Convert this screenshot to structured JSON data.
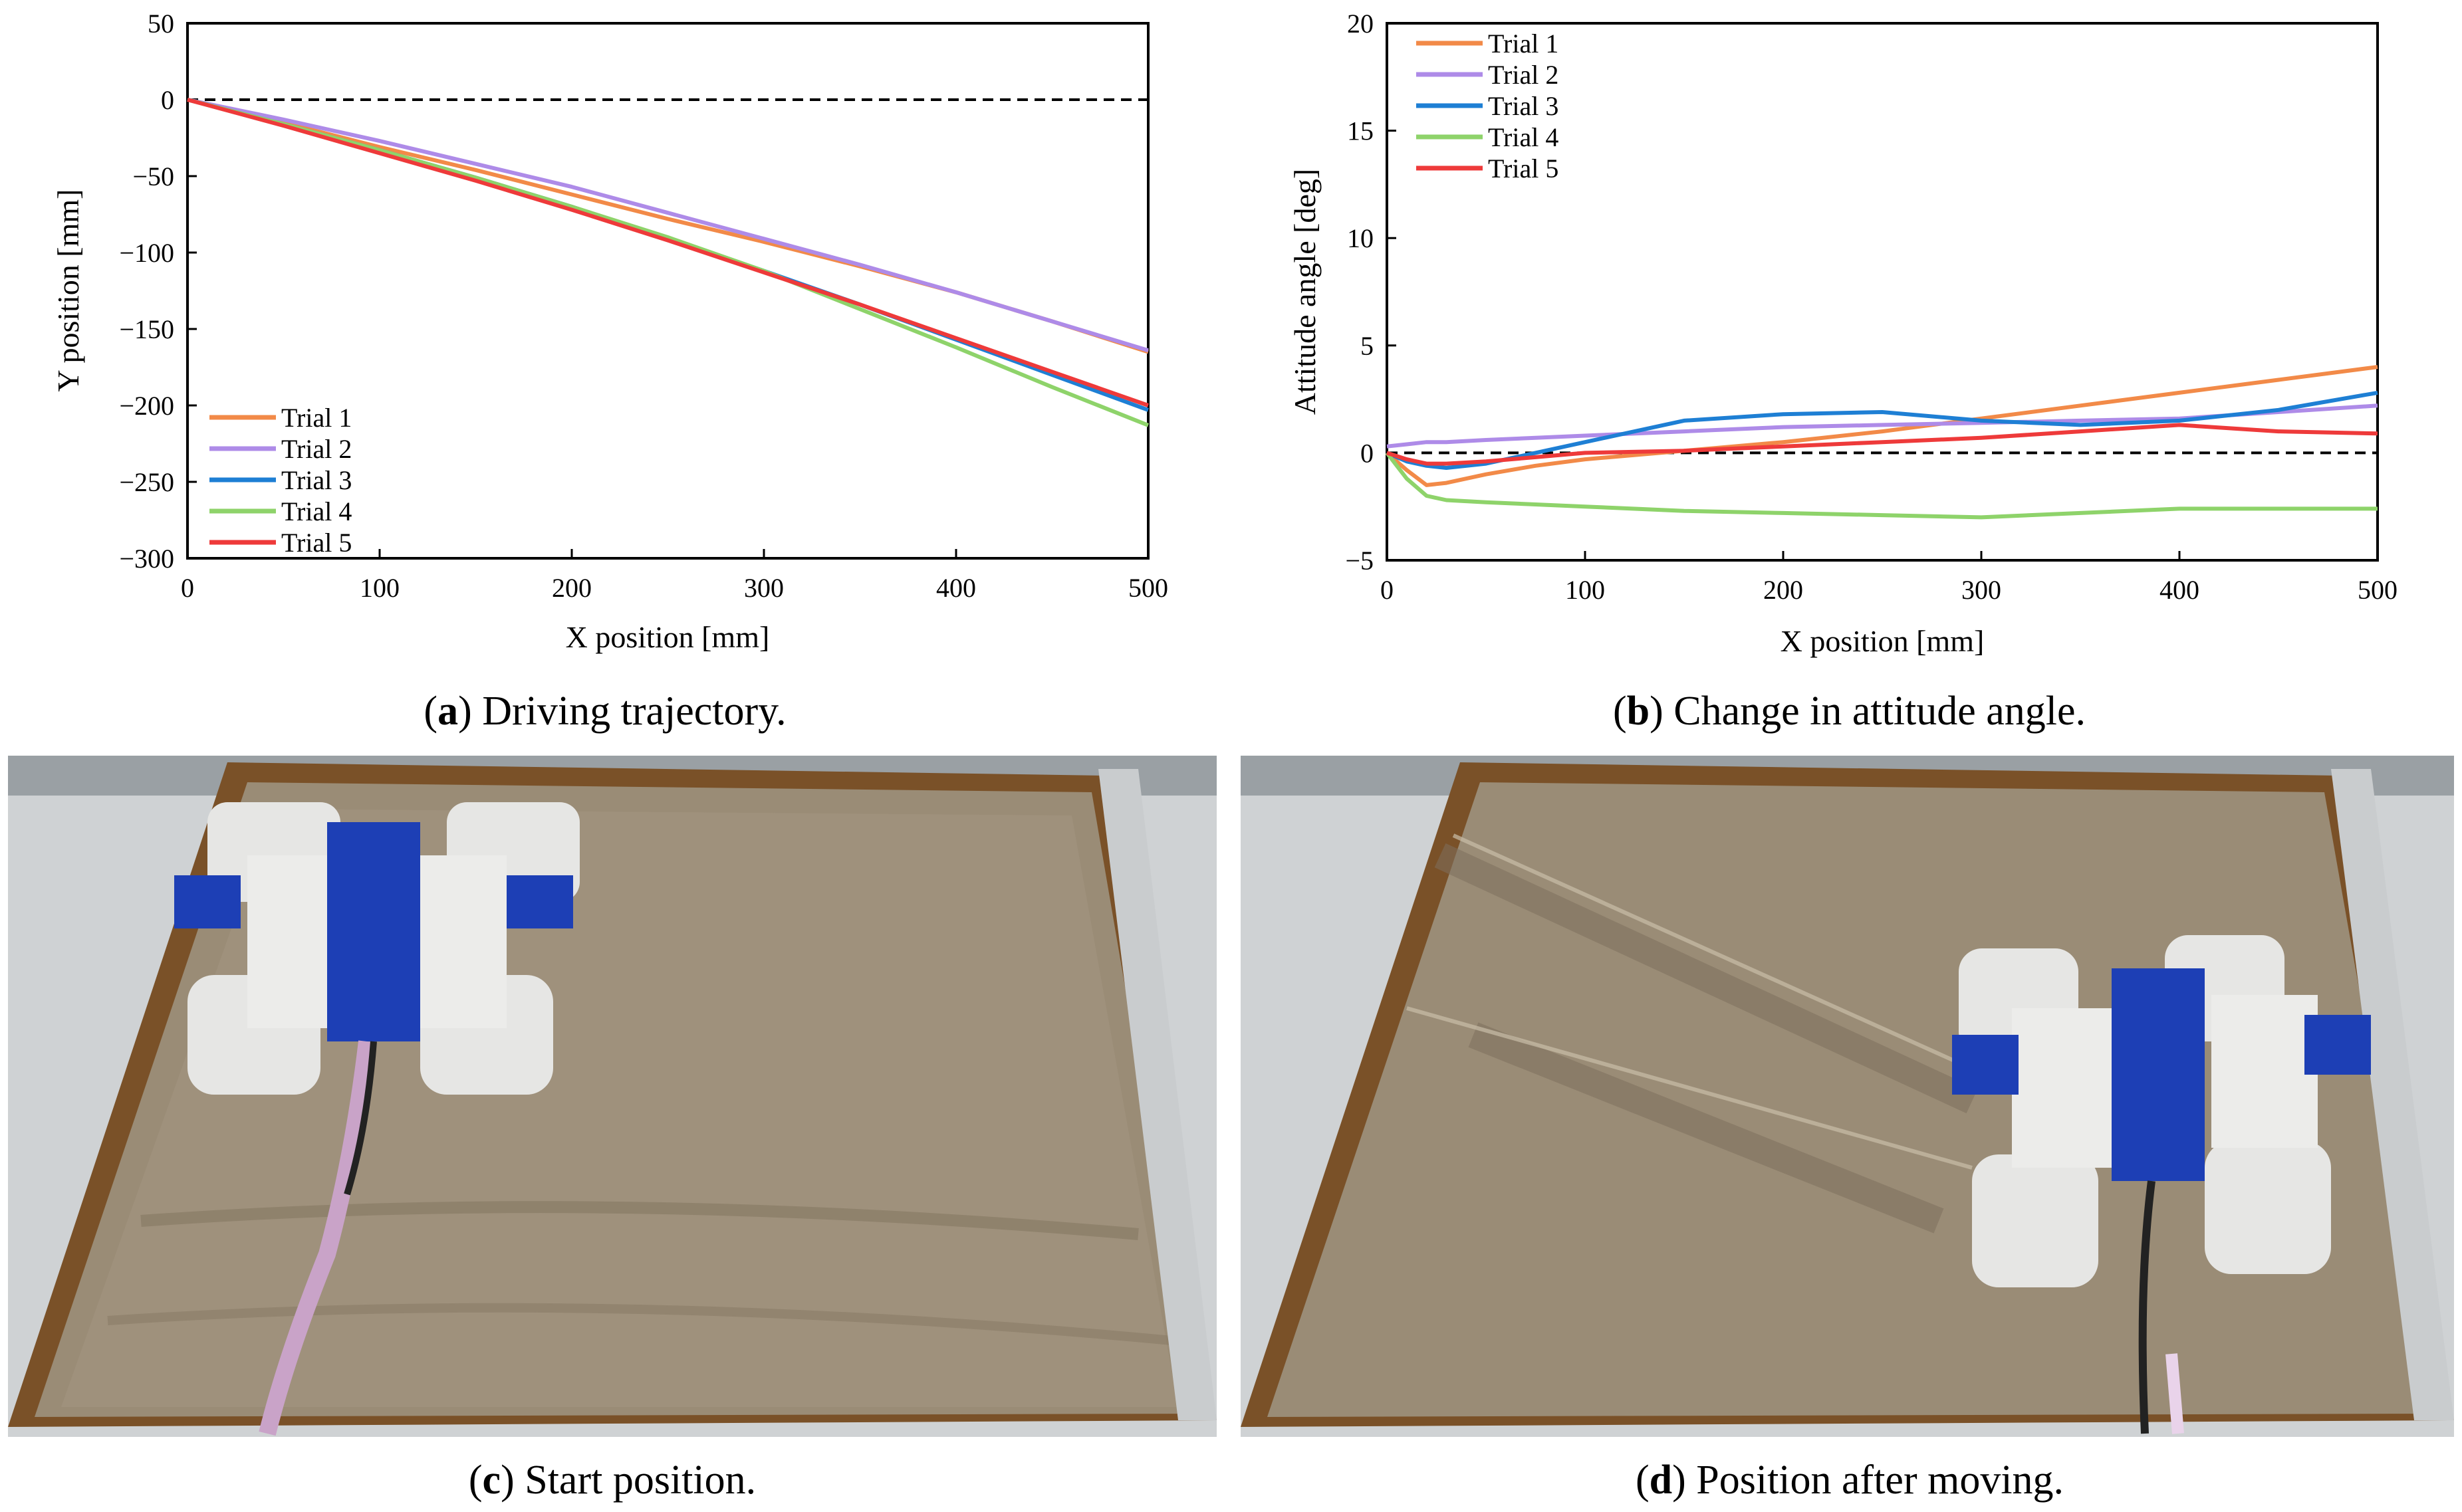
{
  "panels": {
    "a": {
      "letter": "a",
      "caption": "Driving trajectory."
    },
    "b": {
      "letter": "b",
      "caption": "Change in attitude angle."
    },
    "c": {
      "letter": "c",
      "caption": "Start position."
    },
    "d": {
      "letter": "d",
      "caption": "Position after moving."
    }
  },
  "colors": {
    "trial1": "#F28A48",
    "trial2": "#AE8BE8",
    "trial3": "#1E7FD4",
    "trial4": "#8ED36A",
    "trial5": "#EE3A3A",
    "sand": "#9a8c76",
    "frame_wood": "#8a5a2c"
  },
  "chart_data": [
    {
      "id": "a",
      "type": "line",
      "title": "",
      "xlabel": "X position [mm]",
      "ylabel": "Y position [mm]",
      "xlim": [
        0,
        500
      ],
      "ylim": [
        -300,
        50
      ],
      "xticks": [
        0,
        100,
        200,
        300,
        400,
        500
      ],
      "yticks": [
        -300,
        -250,
        -200,
        -150,
        -100,
        -50,
        0,
        50
      ],
      "ytick_labels": [
        "−300",
        "−250",
        "−200",
        "−150",
        "−100",
        "−50",
        "0",
        "50"
      ],
      "reference_line": {
        "y": 0,
        "style": "dashed"
      },
      "legend_position": "bottom-left",
      "series": [
        {
          "name": "Trial 1",
          "color_key": "trial1",
          "x": [
            0,
            50,
            100,
            150,
            200,
            250,
            300,
            350,
            400,
            450,
            500
          ],
          "y": [
            0,
            -15,
            -31,
            -46,
            -62,
            -78,
            -93,
            -109,
            -126,
            -145,
            -165
          ]
        },
        {
          "name": "Trial 2",
          "color_key": "trial2",
          "x": [
            0,
            50,
            100,
            150,
            200,
            250,
            300,
            350,
            400,
            450,
            500
          ],
          "y": [
            0,
            -13,
            -27,
            -42,
            -57,
            -74,
            -91,
            -108,
            -126,
            -145,
            -164
          ]
        },
        {
          "name": "Trial 3",
          "color_key": "trial3",
          "x": [
            0,
            50,
            100,
            150,
            200,
            250,
            300,
            350,
            400,
            450,
            500
          ],
          "y": [
            0,
            -16,
            -33,
            -51,
            -70,
            -91,
            -112,
            -134,
            -157,
            -180,
            -203
          ]
        },
        {
          "name": "Trial 4",
          "color_key": "trial4",
          "x": [
            0,
            50,
            100,
            150,
            200,
            250,
            300,
            350,
            400,
            450,
            500
          ],
          "y": [
            0,
            -16,
            -33,
            -51,
            -70,
            -90,
            -112,
            -137,
            -162,
            -188,
            -213
          ]
        },
        {
          "name": "Trial 5",
          "color_key": "trial5",
          "x": [
            0,
            50,
            100,
            150,
            200,
            250,
            300,
            350,
            400,
            450,
            500
          ],
          "y": [
            0,
            -17,
            -35,
            -53,
            -72,
            -92,
            -113,
            -134,
            -156,
            -178,
            -200
          ]
        }
      ]
    },
    {
      "id": "b",
      "type": "line",
      "title": "",
      "xlabel": "X position [mm]",
      "ylabel": "Attitude angle [deg]",
      "xlim": [
        0,
        500
      ],
      "ylim": [
        -5,
        20
      ],
      "xticks": [
        0,
        100,
        200,
        300,
        400,
        500
      ],
      "yticks": [
        -5,
        0,
        5,
        10,
        15,
        20
      ],
      "ytick_labels": [
        "−5",
        "0",
        "5",
        "10",
        "15",
        "20"
      ],
      "reference_line": {
        "y": 0,
        "style": "dashed"
      },
      "legend_position": "top-left",
      "series": [
        {
          "name": "Trial 1",
          "color_key": "trial1",
          "x": [
            0,
            10,
            20,
            30,
            50,
            75,
            100,
            150,
            200,
            250,
            300,
            350,
            400,
            450,
            500
          ],
          "y": [
            0,
            -0.8,
            -1.5,
            -1.4,
            -1.0,
            -0.6,
            -0.3,
            0.1,
            0.5,
            1.0,
            1.6,
            2.2,
            2.8,
            3.4,
            4.0
          ]
        },
        {
          "name": "Trial 2",
          "color_key": "trial2",
          "x": [
            0,
            10,
            20,
            30,
            50,
            75,
            100,
            150,
            200,
            250,
            300,
            350,
            400,
            450,
            500
          ],
          "y": [
            0.3,
            0.4,
            0.5,
            0.5,
            0.6,
            0.7,
            0.8,
            1.0,
            1.2,
            1.3,
            1.4,
            1.5,
            1.6,
            1.9,
            2.2
          ]
        },
        {
          "name": "Trial 3",
          "color_key": "trial3",
          "x": [
            0,
            10,
            20,
            30,
            50,
            75,
            100,
            150,
            200,
            250,
            300,
            350,
            400,
            450,
            500
          ],
          "y": [
            0,
            -0.4,
            -0.6,
            -0.7,
            -0.5,
            0.0,
            0.5,
            1.5,
            1.8,
            1.9,
            1.5,
            1.3,
            1.5,
            2.0,
            2.8
          ]
        },
        {
          "name": "Trial 4",
          "color_key": "trial4",
          "x": [
            0,
            10,
            20,
            30,
            50,
            75,
            100,
            150,
            200,
            250,
            300,
            350,
            400,
            450,
            500
          ],
          "y": [
            0,
            -1.2,
            -2.0,
            -2.2,
            -2.3,
            -2.4,
            -2.5,
            -2.7,
            -2.8,
            -2.9,
            -3.0,
            -2.8,
            -2.6,
            -2.6,
            -2.6
          ]
        },
        {
          "name": "Trial 5",
          "color_key": "trial5",
          "x": [
            0,
            10,
            20,
            30,
            50,
            75,
            100,
            150,
            200,
            250,
            300,
            350,
            400,
            450,
            500
          ],
          "y": [
            0,
            -0.3,
            -0.5,
            -0.5,
            -0.4,
            -0.2,
            0.0,
            0.1,
            0.3,
            0.5,
            0.7,
            1.0,
            1.3,
            1.0,
            0.9
          ]
        }
      ]
    }
  ]
}
